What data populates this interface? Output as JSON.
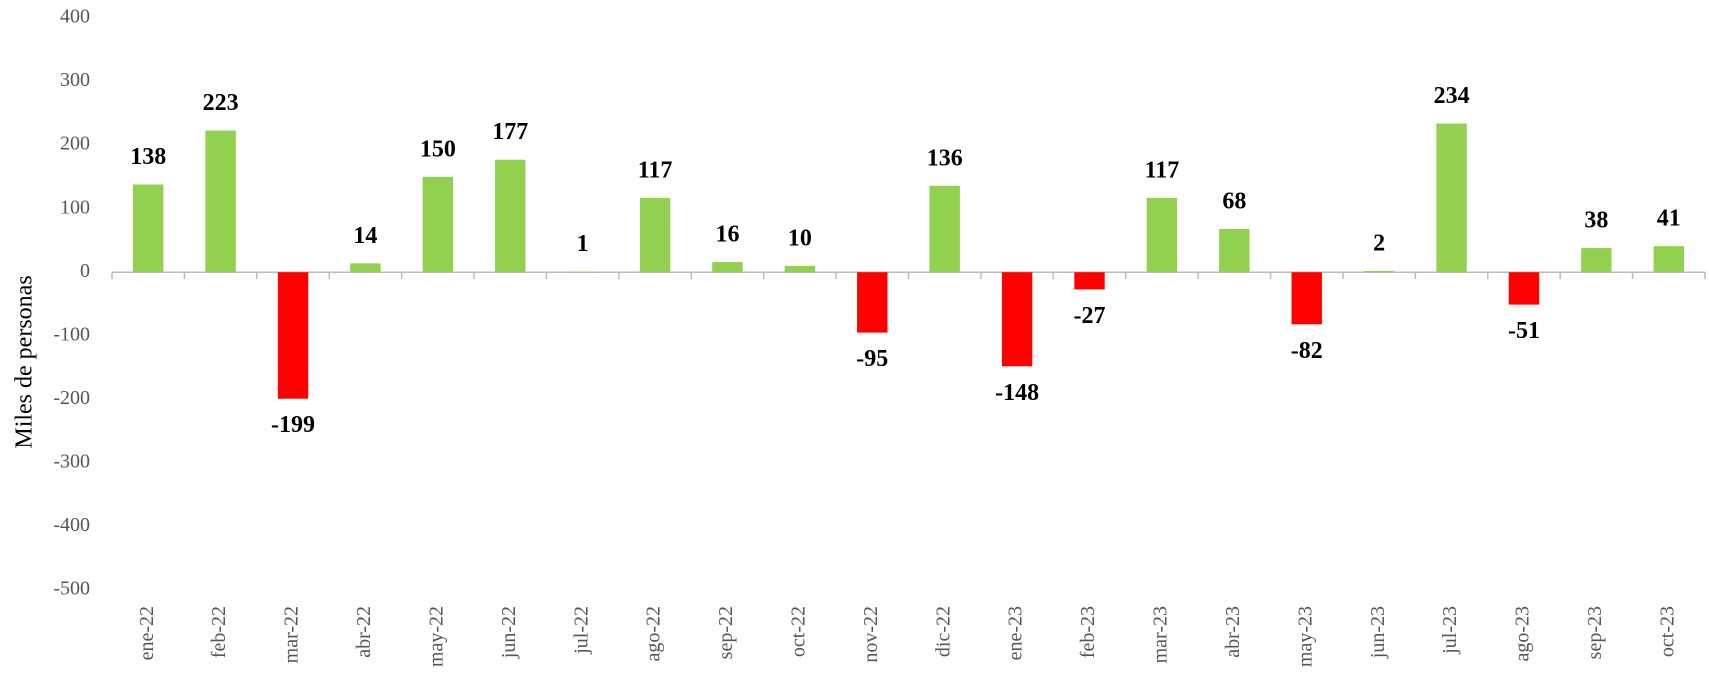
{
  "chart_data": {
    "type": "bar",
    "y_label": "Miles de personas",
    "categories": [
      "ene-22",
      "feb-22",
      "mar-22",
      "abr-22",
      "may-22",
      "jun-22",
      "jul-22",
      "ago-22",
      "sep-22",
      "oct-22",
      "nov-22",
      "dic-22",
      "ene-23",
      "feb-23",
      "mar-23",
      "abr-23",
      "may-23",
      "jun-23",
      "jul-23",
      "ago-23",
      "sep-23",
      "oct-23"
    ],
    "values": [
      138,
      223,
      -199,
      14,
      150,
      177,
      1,
      117,
      16,
      10,
      -95,
      136,
      -148,
      -27,
      117,
      68,
      -82,
      2,
      234,
      -51,
      38,
      41
    ],
    "color": "#92d050",
    "negative_color": "#ff0000",
    "ylim": [
      -500,
      400
    ],
    "yticks": [
      -500,
      -400,
      -300,
      -200,
      -100,
      0,
      100,
      200,
      300,
      400
    ],
    "grid": false
  }
}
